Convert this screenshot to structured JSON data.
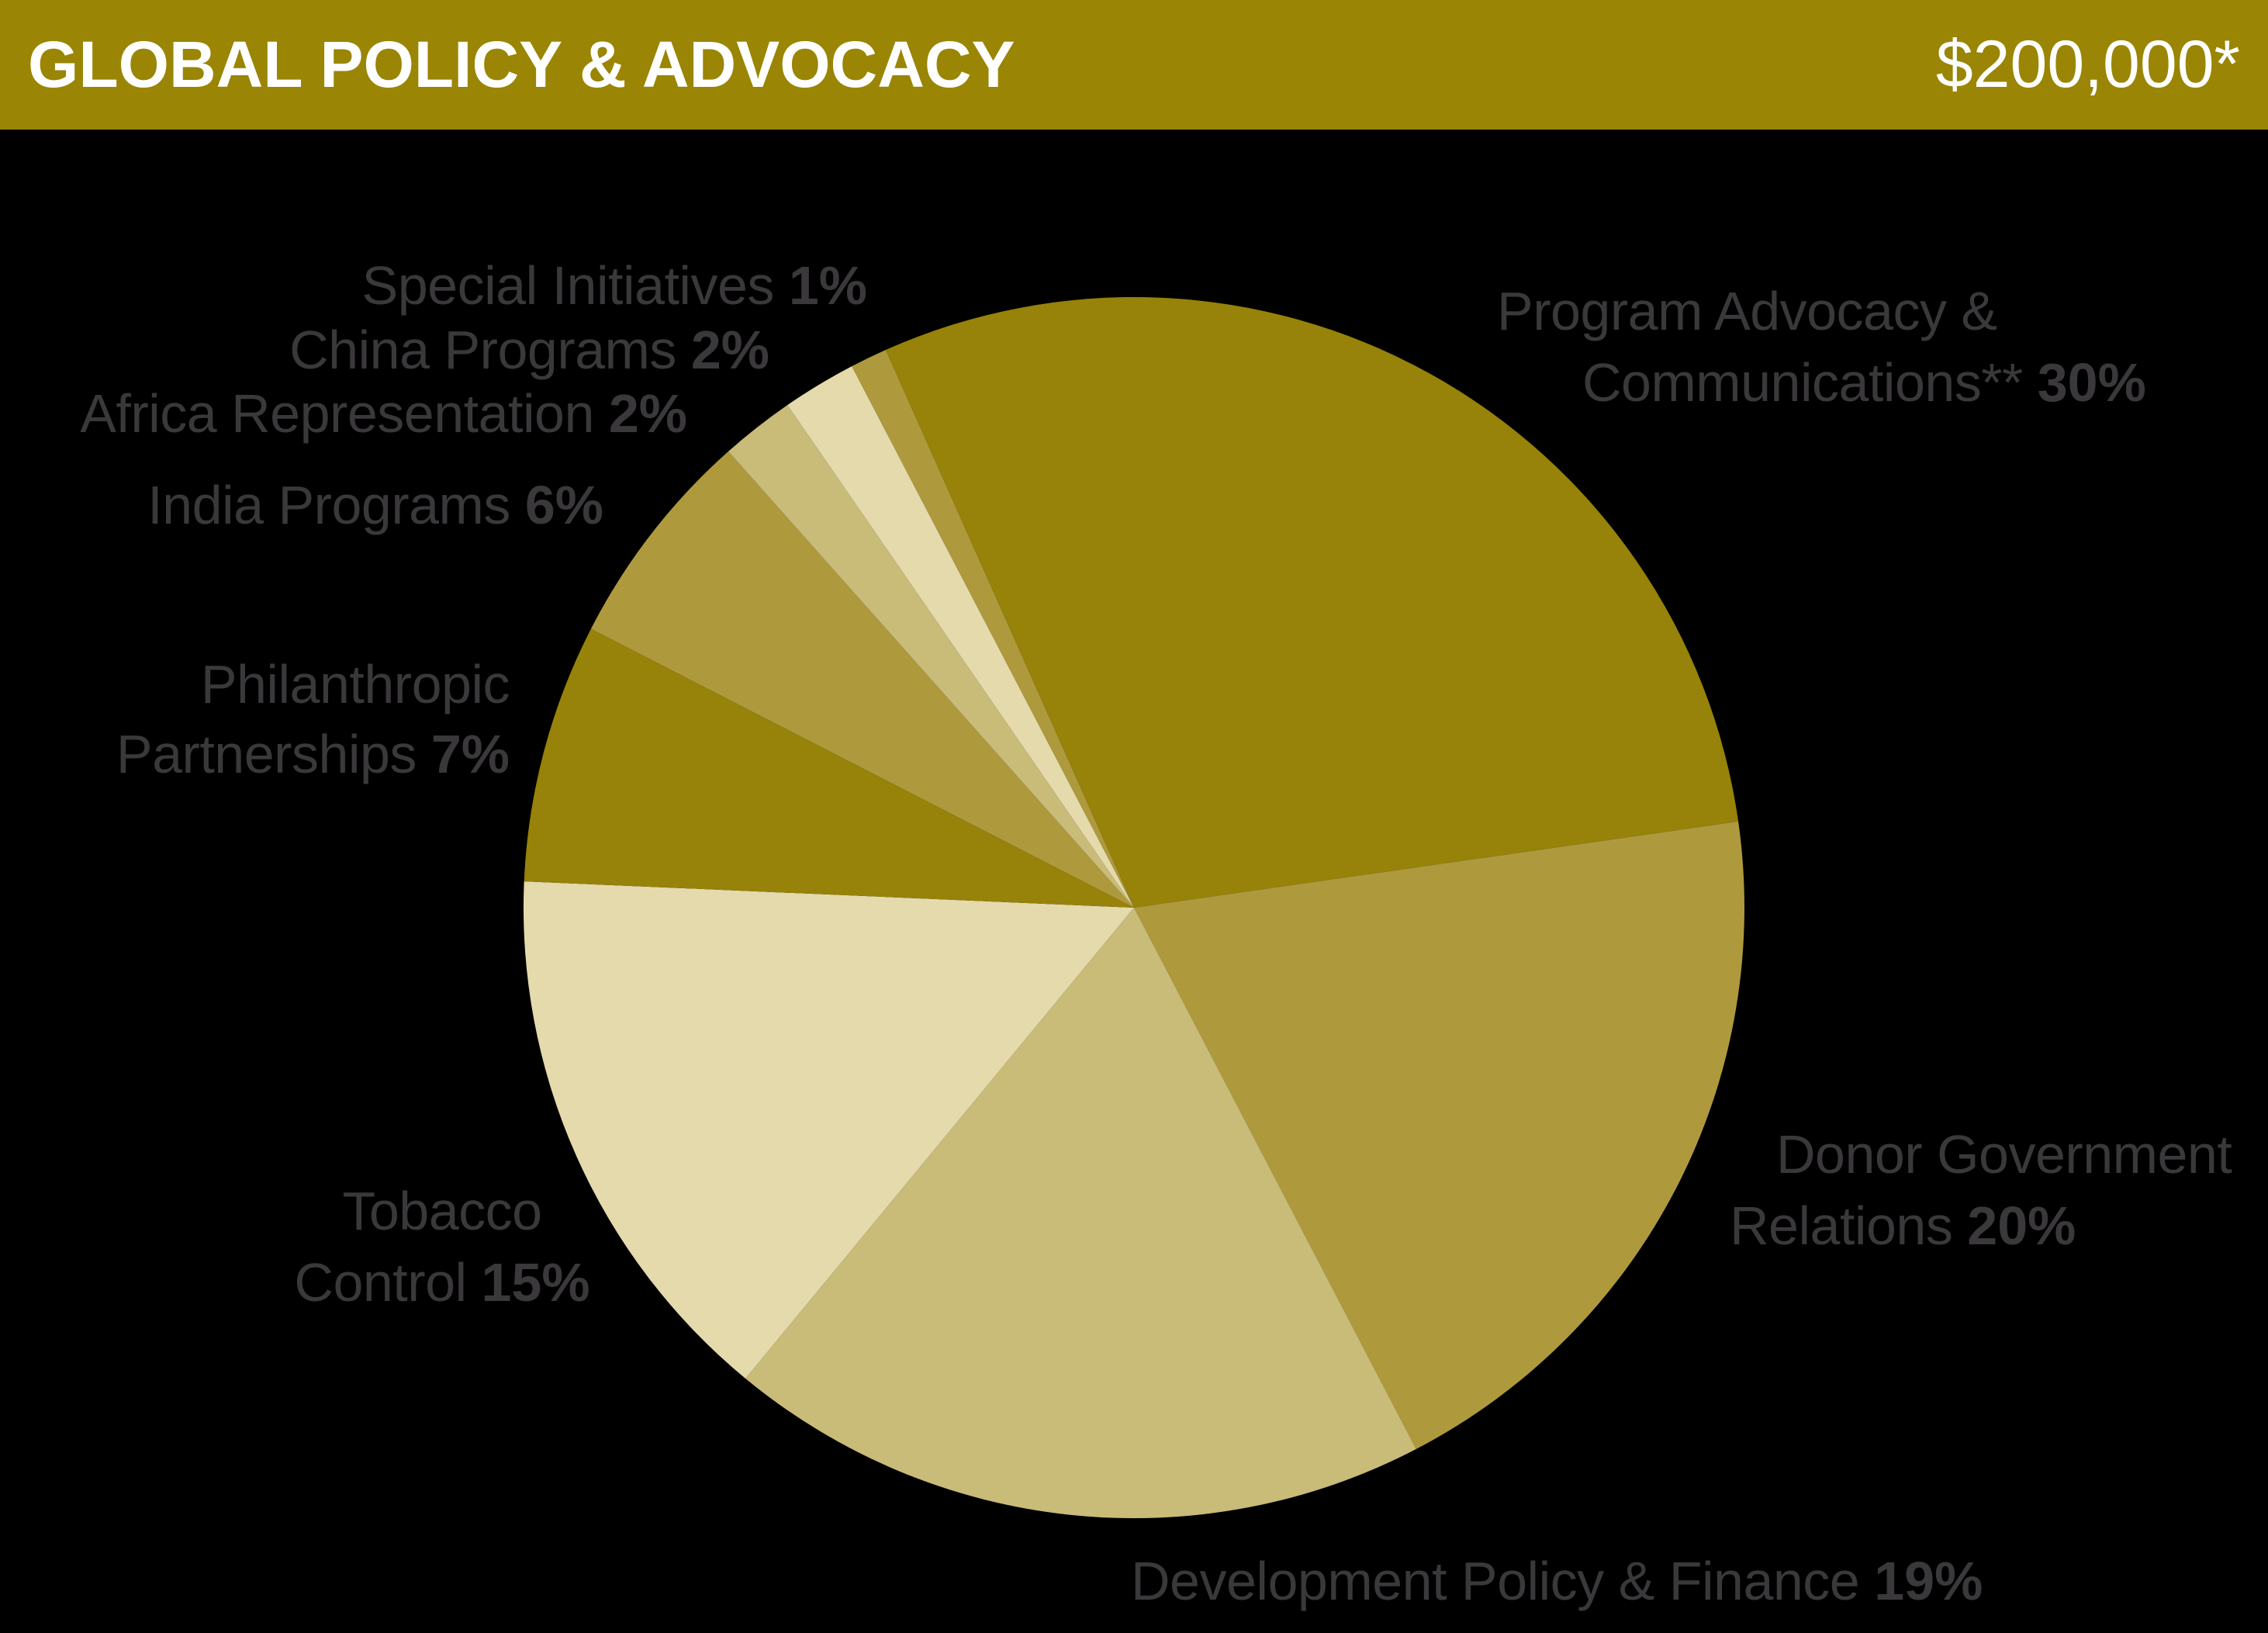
{
  "header": {
    "title": "GLOBAL POLICY & ADVOCACY",
    "amount": "$200,000*",
    "bg_color": "#9A8504",
    "text_color": "#FFFFFF"
  },
  "palette": {
    "dark_gold": "#97820A",
    "medium_gold": "#AE9A3D",
    "tan": "#C9BB78",
    "cream": "#E4DAAC",
    "label_gray": "#3A383B",
    "background": "#000000"
  },
  "chart_data": {
    "type": "pie",
    "title": "GLOBAL POLICY & ADVOCACY",
    "total_amount": "$200,000*",
    "start_angle_deg": -24,
    "direction": "clockwise",
    "legend_position": "labels-around-pie",
    "slices": [
      {
        "label": "Program Advocacy & Communications**",
        "pct": 30,
        "color": "#97820A"
      },
      {
        "label": "Donor Government Relations",
        "pct": 20,
        "color": "#AE9A3D"
      },
      {
        "label": "Development Policy & Finance",
        "pct": 19,
        "color": "#C9BB78"
      },
      {
        "label": "Tobacco Control",
        "pct": 15,
        "color": "#E4DAAC"
      },
      {
        "label": "Philanthropic Partnerships",
        "pct": 7,
        "color": "#97820A"
      },
      {
        "label": "India Programs",
        "pct": 6,
        "color": "#AE9A3D"
      },
      {
        "label": "Africa Representation",
        "pct": 2,
        "color": "#C9BB78"
      },
      {
        "label": "China Programs",
        "pct": 2,
        "color": "#E4DAAC"
      },
      {
        "label": "Special Initiatives",
        "pct": 1,
        "color": "#AE9A3D"
      }
    ]
  },
  "labels": {
    "special": {
      "line1": "Special Initiatives",
      "pct": "1%"
    },
    "china": {
      "line1": "China Programs",
      "pct": "2%"
    },
    "africa": {
      "line1": "Africa Representation",
      "pct": "2%"
    },
    "india": {
      "line1": "India Programs",
      "pct": "6%"
    },
    "philanthropic": {
      "line1": "Philanthropic",
      "line2": "Partnerships",
      "pct": "7%"
    },
    "tobacco": {
      "line1": "Tobacco",
      "line2": "Control",
      "pct": "15%"
    },
    "program": {
      "line1": "Program Advocacy &",
      "line2": "Communications**",
      "pct": "30%"
    },
    "donor": {
      "line1": "Donor Government",
      "line2": "Relations",
      "pct": "20%"
    },
    "development": {
      "line1": "Development Policy & Finance",
      "pct": "19%"
    }
  }
}
